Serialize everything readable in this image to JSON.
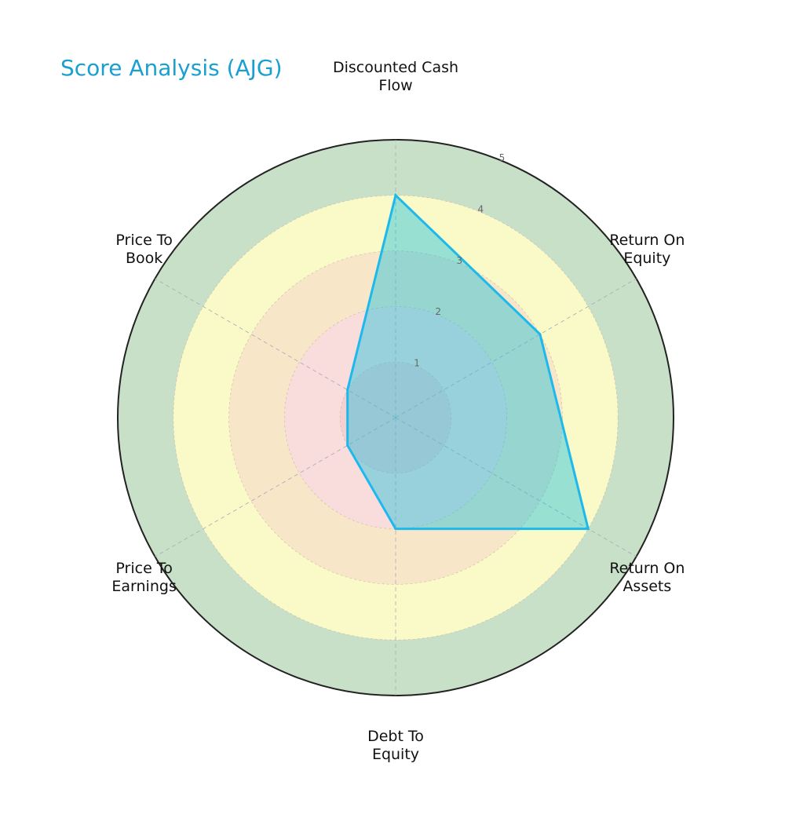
{
  "chart_data": {
    "type": "radar",
    "title": "Score Analysis (AJG)",
    "categories": [
      [
        "Discounted Cash",
        "Flow"
      ],
      [
        "Return On",
        "Equity"
      ],
      [
        "Return On",
        "Assets"
      ],
      [
        "Debt To",
        "Equity"
      ],
      [
        "Price To",
        "Earnings"
      ],
      [
        "Price To",
        "Book"
      ]
    ],
    "values": [
      4,
      3,
      4,
      2,
      1,
      1
    ],
    "rlim": [
      0,
      5
    ],
    "rticks": [
      "1",
      "2",
      "3",
      "4",
      "5"
    ],
    "bands": [
      {
        "from": 0,
        "to": 1,
        "color": "#f6cfcf"
      },
      {
        "from": 1,
        "to": 2,
        "color": "#f9dcdc"
      },
      {
        "from": 2,
        "to": 3,
        "color": "#f8e6c8"
      },
      {
        "from": 3,
        "to": 4,
        "color": "#fafac8"
      },
      {
        "from": 4,
        "to": 5,
        "color": "#c8e0c8"
      }
    ],
    "series_color": "#1eb9ec",
    "fill_color": "#22c1dc",
    "grid": true
  }
}
